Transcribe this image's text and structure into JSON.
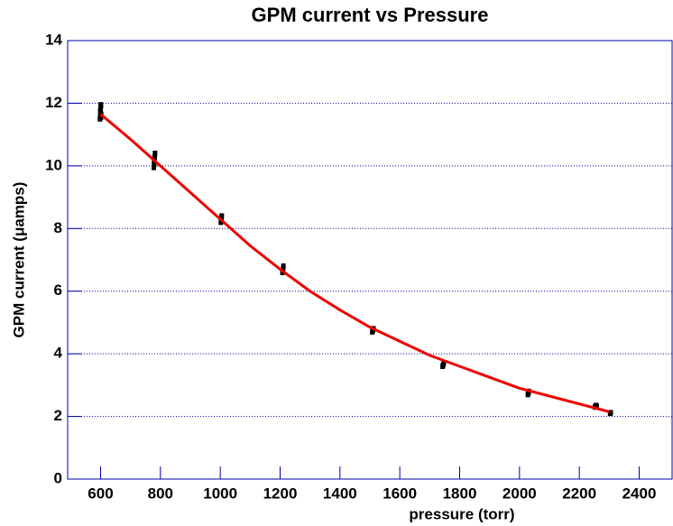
{
  "chart_data": {
    "type": "scatter",
    "title": "GPM current vs Pressure",
    "x_label": "pressure (torr)",
    "y_label": "GPM current (μamps)",
    "xlim": [
      490,
      2510
    ],
    "ylim": [
      0,
      14
    ],
    "xticks": [
      600,
      800,
      1000,
      1200,
      1400,
      1600,
      1800,
      2000,
      2200,
      2400
    ],
    "yticks": [
      0,
      2,
      4,
      6,
      8,
      10,
      12,
      14
    ],
    "grid": true,
    "series": [
      {
        "style": "markers",
        "color": "#000000",
        "x": [
          598,
          599,
          600,
          600,
          601,
          601,
          602,
          599,
          600,
          601,
          778,
          779,
          780,
          781,
          782,
          779,
          1002,
          1003,
          1004,
          1005,
          1208,
          1210,
          1211,
          1508,
          1510,
          1512,
          1743,
          1745,
          1747,
          2028,
          2030,
          2031,
          2252,
          2255,
          2258,
          2303,
          2305
        ],
        "values": [
          11.5,
          11.6,
          11.7,
          11.8,
          11.9,
          11.55,
          11.65,
          11.75,
          11.85,
          11.95,
          9.95,
          10.05,
          10.2,
          10.3,
          10.4,
          10.1,
          8.2,
          8.3,
          8.35,
          8.4,
          6.6,
          6.7,
          6.8,
          4.7,
          4.75,
          4.8,
          3.6,
          3.65,
          3.7,
          2.7,
          2.75,
          2.8,
          2.3,
          2.35,
          2.33,
          2.1,
          2.12
        ]
      },
      {
        "style": "line",
        "color": "#ee0000",
        "x": [
          600,
          700,
          800,
          900,
          1000,
          1100,
          1200,
          1300,
          1400,
          1500,
          1600,
          1700,
          1800,
          1900,
          2000,
          2100,
          2200,
          2300
        ],
        "values": [
          11.65,
          10.85,
          10.0,
          9.15,
          8.3,
          7.45,
          6.7,
          6.0,
          5.4,
          4.85,
          4.4,
          3.95,
          3.6,
          3.25,
          2.9,
          2.65,
          2.4,
          2.15
        ]
      }
    ]
  }
}
